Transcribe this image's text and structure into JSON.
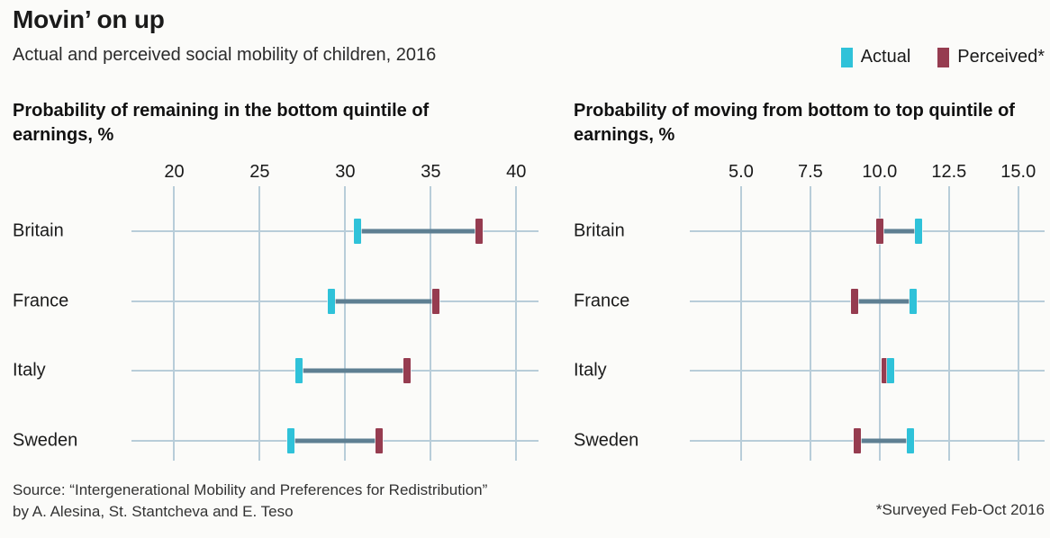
{
  "header": {
    "title": "Movin’ on up",
    "subtitle": "Actual and perceived social mobility of children, 2016",
    "legend": [
      {
        "label": "Actual",
        "color": "#2fc2d9"
      },
      {
        "label": "Perceived*",
        "color": "#963c50"
      }
    ]
  },
  "colors": {
    "actual": "#2fc2d9",
    "perceived": "#963c50",
    "connector": "#5e7f92",
    "grid": "#b8cdd9",
    "background": "#fbfbf9",
    "text": "#1a1a1a"
  },
  "chart_data": [
    {
      "type": "scatter",
      "subtype": "dumbbell",
      "title": "Probability of remaining in the bottom quintile of earnings, %",
      "categories": [
        "Britain",
        "France",
        "Italy",
        "Sweden"
      ],
      "series": [
        {
          "name": "Actual",
          "values": [
            30.7,
            29.2,
            27.3,
            26.8
          ]
        },
        {
          "name": "Perceived",
          "values": [
            37.8,
            35.3,
            33.6,
            32.0
          ]
        }
      ],
      "ticks": [
        20,
        25,
        30,
        35,
        40
      ],
      "tick_labels": [
        "20",
        "25",
        "30",
        "35",
        "40"
      ],
      "xlim": [
        17.5,
        41.3
      ],
      "grid": true,
      "legend_position": "top-right"
    },
    {
      "type": "scatter",
      "subtype": "dumbbell",
      "title": "Probability of moving from bottom to top quintile of earnings, %",
      "categories": [
        "Britain",
        "France",
        "Italy",
        "Sweden"
      ],
      "series": [
        {
          "name": "Actual",
          "values": [
            11.4,
            11.2,
            10.4,
            11.1
          ]
        },
        {
          "name": "Perceived",
          "values": [
            10.0,
            9.1,
            10.2,
            9.2
          ]
        }
      ],
      "ticks": [
        5.0,
        7.5,
        10.0,
        12.5,
        15.0
      ],
      "tick_labels": [
        "5.0",
        "7.5",
        "10.0",
        "12.5",
        "15.0"
      ],
      "xlim": [
        3.15,
        15.95
      ],
      "grid": true,
      "legend_position": "top-right"
    }
  ],
  "footer": {
    "source_line1": "Source: “Intergenerational Mobility and Preferences for Redistribution”",
    "source_line2": "by A. Alesina, St. Stantcheva and E. Teso",
    "footnote": "*Surveyed Feb-Oct 2016"
  }
}
